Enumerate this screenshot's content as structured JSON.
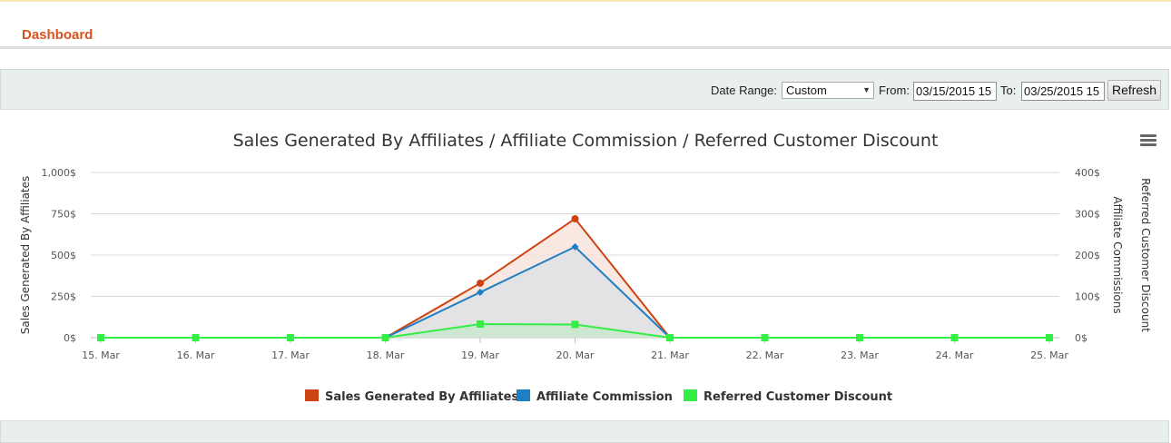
{
  "header": {
    "title": "Dashboard"
  },
  "filters": {
    "date_range_label": "Date Range:",
    "date_range_value": "Custom",
    "from_label": "From:",
    "from_value": "03/15/2015 15",
    "to_label": "To:",
    "to_value": "03/25/2015 15",
    "refresh_label": "Refresh"
  },
  "icons": {
    "chart_menu": "hamburger-menu-icon",
    "dropdown": "caret-down-icon"
  },
  "chart_data": {
    "type": "area",
    "title": "Sales Generated By Affiliates / Affiliate Commission / Referred Customer Discount",
    "x": [
      "15. Mar",
      "16. Mar",
      "17. Mar",
      "18. Mar",
      "19. Mar",
      "20. Mar",
      "21. Mar",
      "22. Mar",
      "23. Mar",
      "24. Mar",
      "25. Mar"
    ],
    "y_left": {
      "label": "Sales Generated By Affiliates",
      "range": [
        0,
        1000
      ],
      "ticks": [
        "0$",
        "250$",
        "500$",
        "750$",
        "1,000$"
      ],
      "tick_values": [
        0,
        250,
        500,
        750,
        1000
      ]
    },
    "y_right": {
      "labels": [
        "Affiliate Commissions",
        "Referred Customer Discount"
      ],
      "range": [
        0,
        400
      ],
      "ticks": [
        "0$",
        "100$",
        "200$",
        "300$",
        "400$"
      ],
      "tick_values": [
        0,
        100,
        200,
        300,
        400
      ]
    },
    "series": [
      {
        "name": "Sales Generated By Affiliates",
        "axis": "left",
        "color": "#cc4411",
        "fill": "#f8e3dc",
        "marker": "circle",
        "values": [
          null,
          null,
          null,
          0,
          330,
          720,
          0,
          null,
          null,
          null,
          null
        ]
      },
      {
        "name": "Affiliate Commission",
        "axis": "left",
        "color": "#1f7fc4",
        "fill": "#dfe1e4",
        "marker": "diamond",
        "values": [
          null,
          null,
          null,
          0,
          275,
          550,
          0,
          null,
          null,
          null,
          null
        ]
      },
      {
        "name": "Referred Customer Discount",
        "axis": "right",
        "color": "#33ee44",
        "fill": "#c9e8cf",
        "marker": "square",
        "values": [
          0,
          0,
          0,
          0,
          33,
          32,
          0,
          0,
          0,
          0,
          0
        ]
      }
    ],
    "grid": true,
    "legend": "bottom-center"
  }
}
